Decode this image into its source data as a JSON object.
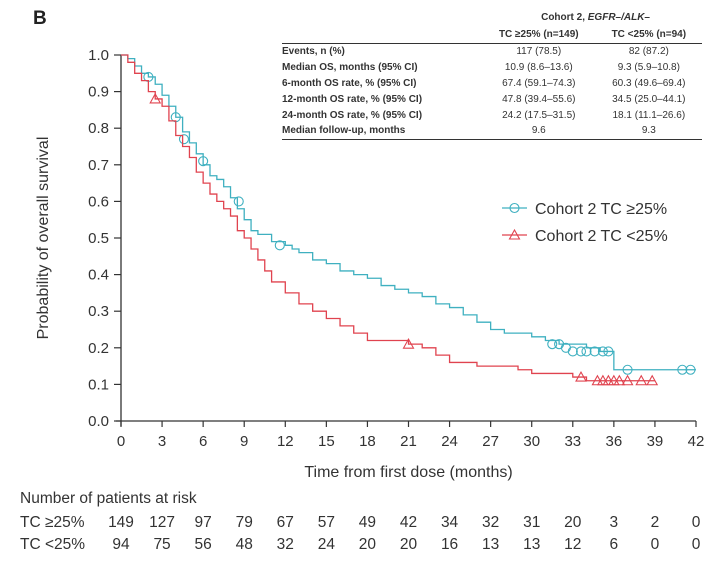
{
  "panel_label": "B",
  "table": {
    "group_header_prefix": "Cohort 2, ",
    "group_header_italic": "EGFR–/ALK–",
    "columns": [
      "TC ≥25% (n=149)",
      "TC <25% (n=94)"
    ],
    "rows": [
      {
        "label": "Events, n (%)",
        "values": [
          "117 (78.5)",
          "82 (87.2)"
        ]
      },
      {
        "label": "Median OS, months (95% CI)",
        "values": [
          "10.9 (8.6–13.6)",
          "9.3 (5.9–10.8)"
        ]
      },
      {
        "label": "6-month OS rate, % (95% CI)",
        "values": [
          "67.4 (59.1–74.3)",
          "60.3 (49.6–69.4)"
        ]
      },
      {
        "label": "12-month OS rate, % (95% CI)",
        "values": [
          "47.8 (39.4–55.6)",
          "34.5 (25.0–44.1)"
        ]
      },
      {
        "label": "24-month OS rate, % (95% CI)",
        "values": [
          "24.2 (17.5–31.5)",
          "18.1 (11.1–26.6)"
        ]
      },
      {
        "label": "Median follow-up, months",
        "values": [
          "9.6",
          "9.3"
        ]
      }
    ]
  },
  "risk_table": {
    "title": "Number of patients at risk",
    "rows": [
      {
        "label": "TC ≥25%",
        "values": [
          149,
          127,
          97,
          79,
          67,
          57,
          49,
          42,
          34,
          32,
          31,
          20,
          3,
          2,
          0
        ]
      },
      {
        "label": "TC <25%",
        "values": [
          94,
          75,
          56,
          48,
          32,
          24,
          20,
          20,
          16,
          13,
          13,
          12,
          6,
          0,
          0
        ]
      }
    ]
  },
  "chart_data": {
    "type": "line",
    "subtype": "kaplan-meier step",
    "xlabel": "Time from first dose (months)",
    "ylabel": "Probability of overall survival",
    "xlim": [
      0,
      42
    ],
    "ylim": [
      0,
      1.0
    ],
    "xticks": [
      0,
      3,
      6,
      9,
      12,
      15,
      18,
      21,
      24,
      27,
      30,
      33,
      36,
      39,
      42
    ],
    "yticks": [
      "0.0",
      "0.1",
      "0.2",
      "0.3",
      "0.4",
      "0.5",
      "0.6",
      "0.7",
      "0.8",
      "0.9",
      "1.0"
    ],
    "grid": false,
    "legend_position": "right-middle",
    "series": [
      {
        "name": "Cohort 2 TC ≥25%",
        "color": "#3fb0c0",
        "marker": "circle",
        "steps": [
          [
            0,
            1.0
          ],
          [
            0.5,
            0.99
          ],
          [
            1,
            0.97
          ],
          [
            1.5,
            0.95
          ],
          [
            2,
            0.94
          ],
          [
            2.5,
            0.92
          ],
          [
            3,
            0.89
          ],
          [
            3.5,
            0.86
          ],
          [
            4,
            0.83
          ],
          [
            4.5,
            0.79
          ],
          [
            5,
            0.76
          ],
          [
            5.5,
            0.73
          ],
          [
            6,
            0.7
          ],
          [
            6.5,
            0.67
          ],
          [
            7,
            0.66
          ],
          [
            7.5,
            0.64
          ],
          [
            8,
            0.61
          ],
          [
            8.5,
            0.58
          ],
          [
            9,
            0.55
          ],
          [
            9.5,
            0.52
          ],
          [
            10,
            0.51
          ],
          [
            11,
            0.49
          ],
          [
            12,
            0.48
          ],
          [
            12.5,
            0.47
          ],
          [
            13,
            0.46
          ],
          [
            14,
            0.44
          ],
          [
            15,
            0.43
          ],
          [
            16,
            0.41
          ],
          [
            17,
            0.4
          ],
          [
            18,
            0.39
          ],
          [
            19,
            0.37
          ],
          [
            20,
            0.36
          ],
          [
            21,
            0.35
          ],
          [
            22,
            0.34
          ],
          [
            23,
            0.32
          ],
          [
            24,
            0.31
          ],
          [
            25,
            0.29
          ],
          [
            26,
            0.27
          ],
          [
            27,
            0.25
          ],
          [
            28,
            0.24
          ],
          [
            29,
            0.24
          ],
          [
            30,
            0.23
          ],
          [
            31,
            0.22
          ],
          [
            32,
            0.21
          ],
          [
            34,
            0.2
          ],
          [
            35,
            0.19
          ],
          [
            36,
            0.14
          ],
          [
            42,
            0.14
          ]
        ],
        "censored": [
          [
            2,
            0.94
          ],
          [
            4,
            0.83
          ],
          [
            4.6,
            0.77
          ],
          [
            6,
            0.71
          ],
          [
            8.6,
            0.6
          ],
          [
            11.6,
            0.48
          ],
          [
            31.5,
            0.21
          ],
          [
            32,
            0.21
          ],
          [
            32.5,
            0.2
          ],
          [
            33,
            0.19
          ],
          [
            33.6,
            0.19
          ],
          [
            34,
            0.19
          ],
          [
            34.6,
            0.19
          ],
          [
            35.2,
            0.19
          ],
          [
            35.6,
            0.19
          ],
          [
            37,
            0.14
          ],
          [
            41,
            0.14
          ],
          [
            41.6,
            0.14
          ]
        ]
      },
      {
        "name": "Cohort 2 TC <25%",
        "color": "#e0434f",
        "marker": "triangle",
        "steps": [
          [
            0,
            1.0
          ],
          [
            0.5,
            0.98
          ],
          [
            1,
            0.95
          ],
          [
            1.5,
            0.93
          ],
          [
            2,
            0.9
          ],
          [
            2.5,
            0.88
          ],
          [
            3,
            0.86
          ],
          [
            3.5,
            0.82
          ],
          [
            4,
            0.78
          ],
          [
            4.5,
            0.75
          ],
          [
            5,
            0.72
          ],
          [
            5.5,
            0.68
          ],
          [
            6,
            0.65
          ],
          [
            6.5,
            0.62
          ],
          [
            7,
            0.6
          ],
          [
            7.5,
            0.58
          ],
          [
            8,
            0.56
          ],
          [
            8.5,
            0.52
          ],
          [
            9,
            0.5
          ],
          [
            9.5,
            0.47
          ],
          [
            10,
            0.44
          ],
          [
            10.5,
            0.41
          ],
          [
            11,
            0.38
          ],
          [
            12,
            0.35
          ],
          [
            13,
            0.32
          ],
          [
            14,
            0.3
          ],
          [
            15,
            0.28
          ],
          [
            16,
            0.26
          ],
          [
            17,
            0.24
          ],
          [
            18,
            0.22
          ],
          [
            21,
            0.21
          ],
          [
            22,
            0.2
          ],
          [
            23,
            0.18
          ],
          [
            24,
            0.16
          ],
          [
            26,
            0.15
          ],
          [
            29,
            0.14
          ],
          [
            30,
            0.13
          ],
          [
            33,
            0.12
          ],
          [
            34,
            0.11
          ],
          [
            39,
            0.11
          ]
        ],
        "censored": [
          [
            2.5,
            0.88
          ],
          [
            21,
            0.21
          ],
          [
            33.6,
            0.12
          ],
          [
            34.8,
            0.11
          ],
          [
            35.2,
            0.11
          ],
          [
            35.6,
            0.11
          ],
          [
            36,
            0.11
          ],
          [
            36.4,
            0.11
          ],
          [
            37,
            0.11
          ],
          [
            38,
            0.11
          ],
          [
            38.8,
            0.11
          ]
        ]
      }
    ]
  }
}
